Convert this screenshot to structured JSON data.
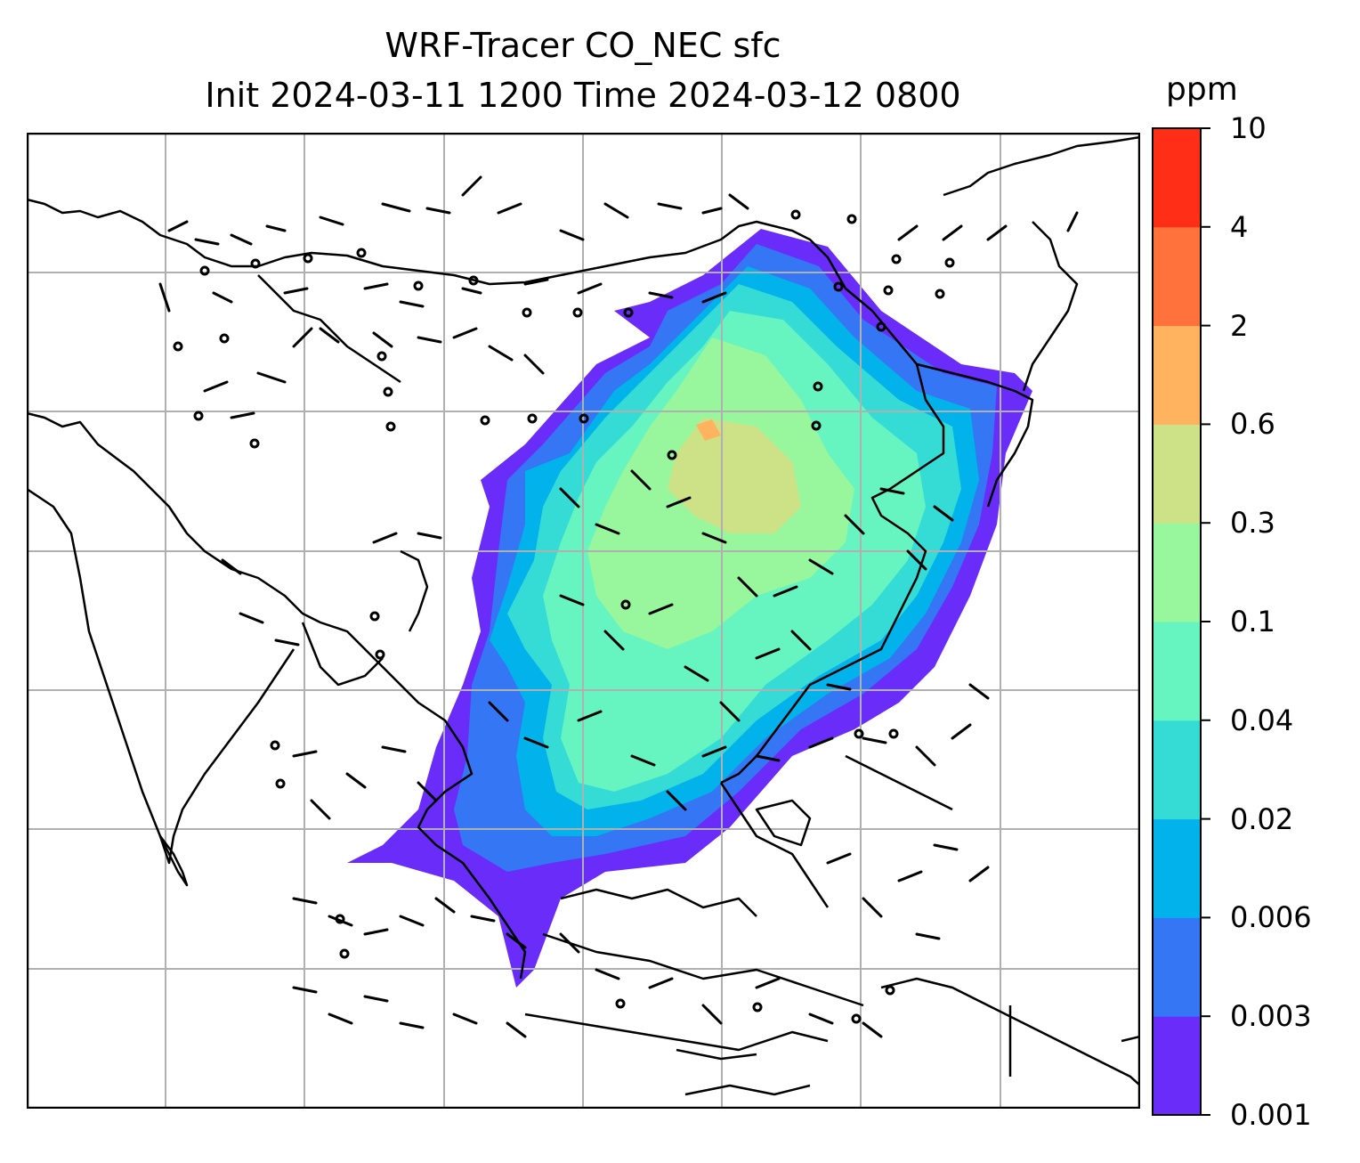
{
  "title": {
    "line1": "WRF-Tracer CO_NEC sfc",
    "line2": "Init 2024-03-11 1200 Time 2024-03-12 0800"
  },
  "colorbar": {
    "unit": "ppm",
    "levels": [
      "0.001",
      "0.003",
      "0.006",
      "0.02",
      "0.04",
      "0.1",
      "0.3",
      "0.6",
      "2",
      "4",
      "10"
    ],
    "colors": [
      "#6a2cf9",
      "#3476f4",
      "#02b2ea",
      "#35dcd6",
      "#66f4c0",
      "#98f79c",
      "#cde186",
      "#ffb35f",
      "#ff723c",
      "#ff2f17"
    ]
  },
  "map": {
    "region": "East and Southeast Asia",
    "overlays": [
      "coastlines",
      "gridlines",
      "wind-barbs",
      "CO tracer concentration"
    ]
  }
}
